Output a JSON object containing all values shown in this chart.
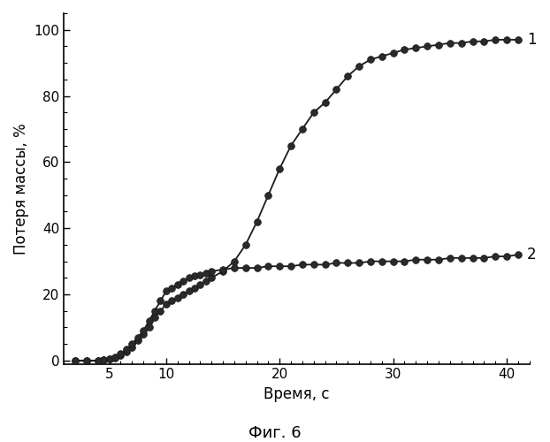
{
  "title": "",
  "xlabel": "Время, с",
  "ylabel": "Потеря массы, %",
  "figcaption": "Фиг. 6",
  "xlim": [
    1,
    42
  ],
  "ylim": [
    -1,
    105
  ],
  "xticks": [
    5,
    10,
    20,
    30,
    40
  ],
  "yticks": [
    0,
    20,
    40,
    60,
    80,
    100
  ],
  "curve1_x": [
    2,
    3,
    4,
    4.5,
    5,
    5.5,
    6,
    6.5,
    7,
    7.5,
    8,
    8.5,
    9,
    9.5,
    10,
    10.5,
    11,
    11.5,
    12,
    12.5,
    13,
    13.5,
    14,
    15,
    16,
    17,
    18,
    19,
    20,
    21,
    22,
    23,
    24,
    25,
    26,
    27,
    28,
    29,
    30,
    31,
    32,
    33,
    34,
    35,
    36,
    37,
    38,
    39,
    40,
    41
  ],
  "curve1_y": [
    0,
    0,
    0,
    0.3,
    0.5,
    0.8,
    1.5,
    2.5,
    4,
    6,
    8,
    10,
    13,
    15,
    17,
    18,
    19,
    20,
    21,
    22,
    23,
    24,
    25,
    27,
    30,
    35,
    42,
    50,
    58,
    65,
    70,
    75,
    78,
    82,
    86,
    89,
    91,
    92,
    93,
    94,
    94.5,
    95,
    95.5,
    96,
    96,
    96.5,
    96.5,
    97,
    97,
    97
  ],
  "curve2_x": [
    2,
    3,
    4,
    4.5,
    5,
    5.5,
    6,
    6.5,
    7,
    7.5,
    8,
    8.5,
    9,
    9.5,
    10,
    10.5,
    11,
    11.5,
    12,
    12.5,
    13,
    13.5,
    14,
    15,
    16,
    17,
    18,
    19,
    20,
    21,
    22,
    23,
    24,
    25,
    26,
    27,
    28,
    29,
    30,
    31,
    32,
    33,
    34,
    35,
    36,
    37,
    38,
    39,
    40,
    41
  ],
  "curve2_y": [
    0,
    0,
    0,
    0.3,
    0.5,
    1,
    2,
    3.5,
    5,
    7,
    9,
    12,
    15,
    18,
    21,
    22,
    23,
    24,
    25,
    25.5,
    26,
    26.5,
    27,
    27.5,
    28,
    28,
    28,
    28.5,
    28.5,
    28.5,
    29,
    29,
    29,
    29.5,
    29.5,
    29.5,
    30,
    30,
    30,
    30,
    30.5,
    30.5,
    30.5,
    31,
    31,
    31,
    31,
    31.5,
    31.5,
    32
  ],
  "line_color": "#1a1a1a",
  "marker_color": "#1a1a1a",
  "marker_face": "#2a2a2a",
  "marker_size": 5.5,
  "linewidth": 1.3,
  "label1": "1",
  "label2": "2",
  "background_color": "#ffffff"
}
